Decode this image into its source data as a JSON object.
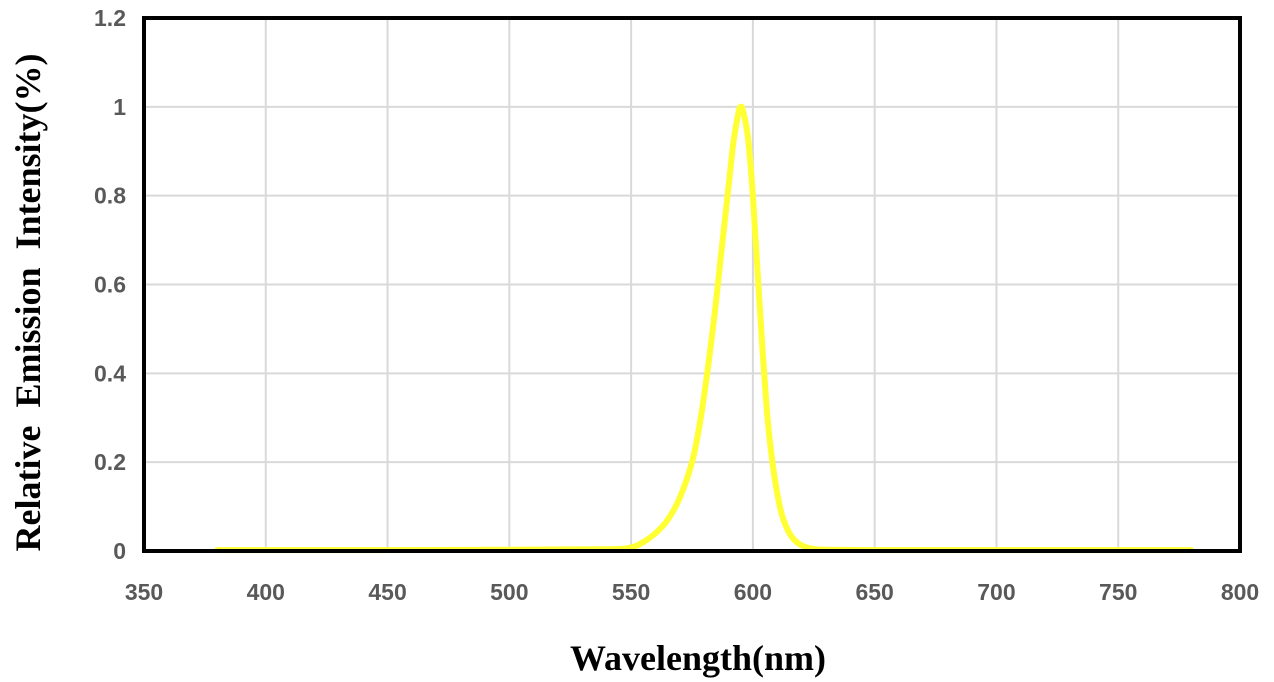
{
  "chart_data": {
    "type": "line",
    "title": "",
    "xlabel": "Wavelength(nm)",
    "ylabel": "Relative  Emission  Intensity(%)",
    "xlim": [
      350,
      800
    ],
    "ylim": [
      0,
      1.2
    ],
    "x_ticks": [
      "350",
      "400",
      "450",
      "500",
      "550",
      "600",
      "650",
      "700",
      "750",
      "800"
    ],
    "y_ticks": [
      "0",
      "0.2",
      "0.4",
      "0.6",
      "0.8",
      "1",
      "1.2"
    ],
    "grid": true,
    "legend": "none",
    "series": [
      {
        "color": "#ffff33",
        "x": [
          380,
          450,
          500,
          540,
          550,
          555,
          560,
          565,
          570,
          575,
          578,
          581,
          584,
          587,
          590,
          592,
          594,
          595,
          596,
          598,
          600,
          602,
          604,
          606,
          608,
          610,
          612,
          615,
          618,
          622,
          626,
          630,
          650,
          700,
          750,
          780
        ],
        "y": [
          0.002,
          0.002,
          0.003,
          0.004,
          0.008,
          0.02,
          0.04,
          0.07,
          0.12,
          0.2,
          0.28,
          0.39,
          0.52,
          0.67,
          0.82,
          0.92,
          0.985,
          1.0,
          0.99,
          0.93,
          0.8,
          0.62,
          0.45,
          0.3,
          0.2,
          0.13,
          0.08,
          0.04,
          0.02,
          0.008,
          0.004,
          0.003,
          0.002,
          0.002,
          0.002,
          0.002
        ]
      }
    ]
  }
}
